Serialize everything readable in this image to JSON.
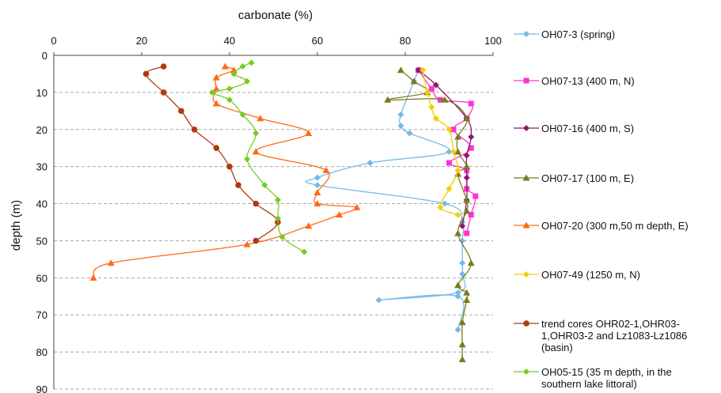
{
  "chart_data": {
    "type": "line",
    "xlabel": "carbonate (%)",
    "ylabel": "depth (m)",
    "xlim": [
      0,
      100
    ],
    "ylim": [
      0,
      90
    ],
    "x_ticks": [
      "0",
      "20",
      "40",
      "60",
      "80",
      "100"
    ],
    "y_ticks": [
      "0",
      "10",
      "20",
      "30",
      "40",
      "50",
      "60",
      "70",
      "80",
      "90"
    ],
    "x_axis_position": "top",
    "y_axis_reversed": true,
    "grid": "horizontal-dashed",
    "legend_position": "right",
    "series": [
      {
        "name": "OH07-3 (spring)",
        "color": "#74b9e8",
        "marker": "diamond",
        "points": [
          [
            83,
            4
          ],
          [
            82,
            7
          ],
          [
            79,
            16
          ],
          [
            79,
            19
          ],
          [
            81,
            21
          ],
          [
            90,
            26
          ],
          [
            72,
            29
          ],
          [
            60,
            33
          ],
          [
            60,
            35
          ],
          [
            89,
            40
          ],
          [
            93,
            45
          ],
          [
            93,
            50
          ],
          [
            93,
            56
          ],
          [
            93,
            59
          ],
          [
            92,
            64
          ],
          [
            74,
            66
          ],
          [
            92,
            65
          ],
          [
            92,
            74
          ]
        ]
      },
      {
        "name": "OH07-13 (400 m, N)",
        "color": "#ff33cc",
        "marker": "square",
        "points": [
          [
            83,
            4
          ],
          [
            86,
            9
          ],
          [
            88,
            12
          ],
          [
            95,
            13
          ],
          [
            94,
            17
          ],
          [
            91,
            20
          ],
          [
            95,
            25
          ],
          [
            90,
            29
          ],
          [
            94,
            31
          ],
          [
            94,
            36
          ],
          [
            96,
            38
          ],
          [
            95,
            43
          ],
          [
            94,
            48
          ]
        ]
      },
      {
        "name": "OH07-16 (400 m, S)",
        "color": "#8b1a6b",
        "marker": "diamond",
        "points": [
          [
            83,
            4
          ],
          [
            87,
            8
          ],
          [
            94,
            17
          ],
          [
            95,
            22
          ],
          [
            94,
            27
          ],
          [
            94,
            33
          ],
          [
            94,
            39
          ],
          [
            93,
            46
          ]
        ]
      },
      {
        "name": "OH07-17 (100 m, E)",
        "color": "#7a7a1e",
        "marker": "triangle",
        "points": [
          [
            79,
            4
          ],
          [
            82,
            7
          ],
          [
            85,
            10
          ],
          [
            76,
            12
          ],
          [
            89,
            12
          ],
          [
            94,
            17
          ],
          [
            92,
            22
          ],
          [
            92,
            26
          ],
          [
            94,
            30
          ],
          [
            92,
            32
          ],
          [
            94,
            39
          ],
          [
            94,
            42
          ],
          [
            92,
            48
          ],
          [
            95,
            56
          ],
          [
            92,
            62
          ],
          [
            94,
            64
          ],
          [
            94,
            66
          ],
          [
            93,
            72
          ],
          [
            93,
            78
          ],
          [
            93,
            82
          ]
        ]
      },
      {
        "name": "OH07-20 (300 m,50 m depth, E)",
        "color": "#ff6a13",
        "marker": "triangle",
        "points": [
          [
            39,
            3
          ],
          [
            41,
            4
          ],
          [
            37,
            6
          ],
          [
            37,
            9
          ],
          [
            37,
            13
          ],
          [
            47,
            17
          ],
          [
            58,
            21
          ],
          [
            46,
            26
          ],
          [
            62,
            31
          ],
          [
            60,
            37
          ],
          [
            60,
            40
          ],
          [
            69,
            41
          ],
          [
            65,
            43
          ],
          [
            58,
            46
          ],
          [
            44,
            51
          ],
          [
            13,
            56
          ],
          [
            9,
            60
          ]
        ]
      },
      {
        "name": "OH07-49 (1250 m, N)",
        "color": "#f2cf00",
        "marker": "diamond",
        "points": [
          [
            84,
            4
          ],
          [
            85,
            10
          ],
          [
            86,
            14
          ],
          [
            87,
            17
          ],
          [
            90,
            20
          ],
          [
            91,
            26
          ],
          [
            92,
            31
          ],
          [
            90,
            36
          ],
          [
            88,
            41
          ],
          [
            92,
            43
          ]
        ]
      },
      {
        "name": "trend cores  OHR02-1,OHR03-1,OHR03-2 and Lz1083-Lz1086 (basin)",
        "color": "#b03a10",
        "marker": "circle",
        "points": [
          [
            25,
            3
          ],
          [
            21,
            5
          ],
          [
            25,
            10
          ],
          [
            29,
            15
          ],
          [
            32,
            20
          ],
          [
            37,
            25
          ],
          [
            40,
            30
          ],
          [
            42,
            35
          ],
          [
            46,
            40
          ],
          [
            51,
            45
          ],
          [
            46,
            50
          ]
        ]
      },
      {
        "name": "OH05-15 (35 m depth, in the southern lake littoral)",
        "color": "#77cc22",
        "marker": "diamond",
        "points": [
          [
            45,
            2
          ],
          [
            43,
            3
          ],
          [
            41,
            5
          ],
          [
            44,
            7
          ],
          [
            40,
            9
          ],
          [
            36,
            10
          ],
          [
            40,
            12
          ],
          [
            43,
            16
          ],
          [
            46,
            21
          ],
          [
            44,
            28
          ],
          [
            48,
            35
          ],
          [
            51,
            39
          ],
          [
            51,
            44
          ],
          [
            52,
            49
          ],
          [
            57,
            53
          ]
        ]
      }
    ]
  },
  "legend": {
    "entries": [
      "OH07-3 (spring)",
      "OH07-13 (400 m, N)",
      "OH07-16 (400 m, S)",
      "OH07-17 (100 m, E)",
      "OH07-20 (300 m,50 m depth, E)",
      "OH07-49 (1250 m, N)",
      "trend cores  OHR02-1,OHR03-\n1,OHR03-2 and Lz1083-Lz1086\n(basin)",
      "OH05-15 (35 m depth, in the\nsouthern lake littoral)"
    ]
  }
}
